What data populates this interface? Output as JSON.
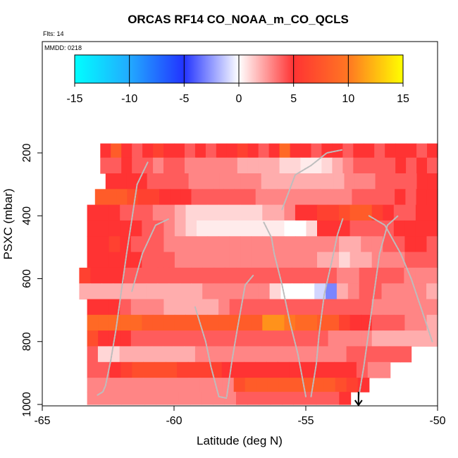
{
  "chart_data": {
    "type": "heatmap",
    "title": "ORCAS RF14 CO_NOAA_m_CO_QCLS",
    "top_notes": [
      "Flts: 14",
      "MMDD: 0218"
    ],
    "xlabel": "Latitude (deg N)",
    "ylabel": "PSXC (mbar)",
    "xlim": [
      -65,
      -50
    ],
    "ylim": [
      1000,
      100
    ],
    "xticks": [
      -65,
      -60,
      -55,
      -50
    ],
    "yticks": [
      200,
      400,
      600,
      800,
      1000
    ],
    "grid": false,
    "colorbar": {
      "range": [
        -15,
        15
      ],
      "ticks": [
        -15,
        -10,
        -5,
        0,
        5,
        10,
        15
      ],
      "stops": [
        {
          "v": -15,
          "color": "#00ffff"
        },
        {
          "v": -10,
          "color": "#22aaff"
        },
        {
          "v": -5,
          "color": "#2233ff"
        },
        {
          "v": 0,
          "color": "#ffffff"
        },
        {
          "v": 5,
          "color": "#ff3333"
        },
        {
          "v": 10,
          "color": "#ff7722"
        },
        {
          "v": 15,
          "color": "#ffff00"
        }
      ]
    },
    "rows": [
      {
        "p": 190,
        "xmin": -62.8,
        "xmax": -50.0,
        "vals": [
          5,
          8,
          5,
          4,
          5,
          6,
          5,
          5,
          4,
          5,
          4,
          5,
          5,
          6,
          5,
          4,
          5,
          9,
          5,
          5,
          4,
          5,
          5,
          4,
          5,
          5,
          4,
          5,
          5,
          5,
          4,
          5
        ]
      },
      {
        "p": 240,
        "xmin": -62.8,
        "xmax": -50.0,
        "vals": [
          4,
          4,
          5,
          4,
          4,
          3,
          4,
          4,
          3,
          3,
          3,
          3,
          3,
          2,
          2,
          2,
          2,
          1,
          1,
          0.5,
          0.5,
          1,
          2,
          3,
          4,
          4,
          4,
          4,
          5,
          4,
          5,
          4
        ]
      },
      {
        "p": 290,
        "xmin": -62.6,
        "xmax": -50.0,
        "vals": [
          5,
          5,
          5,
          5,
          4,
          4,
          4,
          4,
          3,
          3,
          3,
          3,
          3,
          3,
          3,
          2,
          2,
          2,
          2,
          2,
          2,
          2,
          2,
          3,
          3,
          3,
          4,
          4,
          4,
          4,
          5,
          5
        ]
      },
      {
        "p": 340,
        "xmin": -63.0,
        "xmax": -50.0,
        "vals": [
          8,
          8,
          8,
          7,
          6,
          6,
          5,
          5,
          5,
          4,
          4,
          4,
          4,
          4,
          4,
          3,
          3,
          3,
          3,
          3,
          3,
          3,
          3,
          3,
          4,
          4,
          4,
          4,
          5,
          4,
          5,
          5
        ]
      },
      {
        "p": 390,
        "xmin": -63.3,
        "xmax": -50.0,
        "vals": [
          5,
          5,
          5,
          4,
          4,
          4,
          3,
          3,
          2,
          1,
          1,
          1,
          1,
          1,
          1,
          1,
          2,
          2,
          3,
          5,
          5,
          6,
          6,
          7,
          8,
          8,
          6,
          5,
          4,
          4,
          5,
          5
        ]
      },
      {
        "p": 440,
        "xmin": -63.3,
        "xmax": -50.0,
        "vals": [
          5,
          5,
          5,
          5,
          5,
          4,
          4,
          3,
          2,
          1,
          0.5,
          0.5,
          0.5,
          0.5,
          0.5,
          0.5,
          0.5,
          0.5,
          0,
          0,
          1,
          5,
          5,
          5,
          4,
          4,
          4,
          4,
          5,
          5,
          5,
          5
        ]
      },
      {
        "p": 490,
        "xmin": -63.3,
        "xmax": -50.0,
        "vals": [
          5,
          5,
          6,
          5,
          4,
          4,
          4,
          3,
          3,
          3,
          3,
          3,
          3,
          3,
          3,
          3,
          3,
          3,
          3,
          3,
          3,
          3,
          3,
          2,
          2,
          3,
          3,
          4,
          4,
          5,
          5,
          4
        ]
      },
      {
        "p": 540,
        "xmin": -63.3,
        "xmax": -50.0,
        "vals": [
          5,
          5,
          5,
          5,
          5,
          4,
          4,
          4,
          3,
          3,
          3,
          3,
          3,
          3,
          3,
          3,
          3,
          3,
          3,
          3,
          3,
          2,
          2,
          1,
          2,
          2,
          3,
          3,
          3,
          4,
          4,
          4
        ]
      },
      {
        "p": 590,
        "xmin": -63.6,
        "xmax": -50.0,
        "vals": [
          6,
          5,
          5,
          5,
          4,
          4,
          4,
          4,
          4,
          4,
          4,
          4,
          4,
          4,
          4,
          4,
          4,
          4,
          4,
          4,
          4,
          4,
          4,
          3,
          3,
          4,
          4,
          4,
          4,
          3,
          3,
          3
        ]
      },
      {
        "p": 640,
        "xmin": -63.6,
        "xmax": -50.0,
        "vals": [
          2,
          2,
          2,
          2,
          2,
          2,
          2,
          2,
          2,
          2,
          2,
          3,
          3,
          3,
          3,
          3,
          3,
          1,
          0,
          0,
          0,
          -1,
          -3,
          2,
          3,
          4,
          4,
          3,
          3,
          3,
          3,
          2
        ]
      },
      {
        "p": 690,
        "xmin": -63.3,
        "xmax": -50.0,
        "vals": [
          5,
          5,
          5,
          4,
          3,
          3,
          3,
          2,
          2,
          2,
          2,
          2,
          3,
          4,
          4,
          4,
          4,
          4,
          4,
          4,
          4,
          4,
          4,
          4,
          4,
          4,
          3,
          3,
          3,
          3,
          3,
          3
        ]
      },
      {
        "p": 740,
        "xmin": -63.3,
        "xmax": -50.0,
        "vals": [
          9,
          9,
          9,
          9,
          9,
          8,
          8,
          8,
          8,
          8,
          8,
          8,
          8,
          8,
          8,
          8,
          11,
          11,
          10,
          9,
          9,
          8,
          8,
          6,
          5,
          5,
          4,
          4,
          4,
          3,
          3,
          2
        ]
      },
      {
        "p": 790,
        "xmin": -63.3,
        "xmax": -50.0,
        "vals": [
          7,
          5,
          5,
          5,
          4,
          4,
          4,
          4,
          4,
          4,
          4,
          4,
          4,
          4,
          4,
          4,
          4,
          4,
          4,
          4,
          4,
          4,
          3,
          3,
          3,
          3,
          2,
          2,
          2,
          2,
          2,
          2
        ]
      },
      {
        "p": 840,
        "xmin": -63.3,
        "xmax": -51.0,
        "vals": [
          4,
          1,
          1,
          2,
          2,
          2,
          2,
          2,
          2,
          2,
          3,
          3,
          3,
          3,
          3,
          3,
          3,
          3,
          3,
          3,
          3,
          3,
          3,
          3,
          4,
          4,
          4,
          4,
          4,
          4
        ]
      },
      {
        "p": 890,
        "xmin": -63.3,
        "xmax": -51.8,
        "vals": [
          4,
          4,
          5,
          6,
          7,
          7,
          7,
          7,
          6,
          6,
          6,
          6,
          5,
          5,
          5,
          5,
          5,
          5,
          5,
          5,
          5,
          5,
          5,
          5,
          4,
          3,
          3
        ]
      },
      {
        "p": 940,
        "xmin": -63.3,
        "xmax": -52.6,
        "vals": [
          3,
          3,
          3,
          3,
          3,
          3,
          3,
          3,
          3,
          3,
          3,
          3,
          3,
          7,
          8,
          8,
          8,
          8,
          8,
          8,
          8,
          8,
          7,
          6,
          5
        ]
      },
      {
        "p": 980,
        "xmin": -63.3,
        "xmax": -53.3,
        "vals": [
          3,
          3,
          3,
          3,
          3,
          3,
          3,
          3,
          3,
          3,
          3,
          3,
          3,
          4,
          4,
          4,
          4,
          4,
          4,
          4,
          4,
          4,
          5
        ]
      }
    ],
    "flight_track": [
      {
        "points": [
          [
            -62.9,
            970
          ],
          [
            -62.7,
            960
          ],
          [
            -62.6,
            940
          ],
          [
            -62.4,
            860
          ],
          [
            -62.2,
            760
          ],
          [
            -62.0,
            640
          ],
          [
            -61.8,
            520
          ],
          [
            -61.6,
            410
          ],
          [
            -61.4,
            300
          ],
          [
            -61.0,
            230
          ]
        ]
      },
      {
        "points": [
          [
            -61.6,
            640
          ],
          [
            -61.2,
            520
          ],
          [
            -60.7,
            430
          ],
          [
            -60.2,
            410
          ]
        ]
      },
      {
        "points": [
          [
            -59.2,
            690
          ],
          [
            -58.8,
            800
          ],
          [
            -58.6,
            880
          ],
          [
            -58.3,
            975
          ],
          [
            -58.0,
            980
          ]
        ]
      },
      {
        "points": [
          [
            -58.0,
            975
          ],
          [
            -57.8,
            860
          ],
          [
            -57.6,
            760
          ],
          [
            -57.3,
            620
          ],
          [
            -57.0,
            590
          ]
        ]
      },
      {
        "points": [
          [
            -55.0,
            975
          ],
          [
            -55.3,
            840
          ],
          [
            -55.6,
            740
          ],
          [
            -55.9,
            620
          ],
          [
            -56.2,
            520
          ],
          [
            -56.3,
            470
          ],
          [
            -56.6,
            420
          ]
        ]
      },
      {
        "points": [
          [
            -54.8,
            975
          ],
          [
            -54.6,
            870
          ],
          [
            -54.5,
            780
          ],
          [
            -54.3,
            650
          ],
          [
            -54.0,
            540
          ],
          [
            -53.8,
            460
          ],
          [
            -53.6,
            410
          ]
        ]
      },
      {
        "points": [
          [
            -55.9,
            380
          ],
          [
            -55.4,
            270
          ],
          [
            -54.8,
            240
          ],
          [
            -54.2,
            200
          ],
          [
            -53.6,
            190
          ]
        ]
      },
      {
        "points": [
          [
            -52.6,
            400
          ],
          [
            -52.0,
            430
          ],
          [
            -51.4,
            520
          ],
          [
            -51.0,
            600
          ],
          [
            -50.6,
            700
          ],
          [
            -50.2,
            800
          ]
        ]
      },
      {
        "points": [
          [
            -53.0,
            980
          ],
          [
            -52.8,
            880
          ],
          [
            -52.6,
            760
          ],
          [
            -52.4,
            640
          ],
          [
            -52.2,
            520
          ],
          [
            -51.9,
            430
          ],
          [
            -51.5,
            400
          ]
        ]
      }
    ],
    "marker": {
      "x": -53.0,
      "p": 1000,
      "type": "arrow-down"
    }
  }
}
